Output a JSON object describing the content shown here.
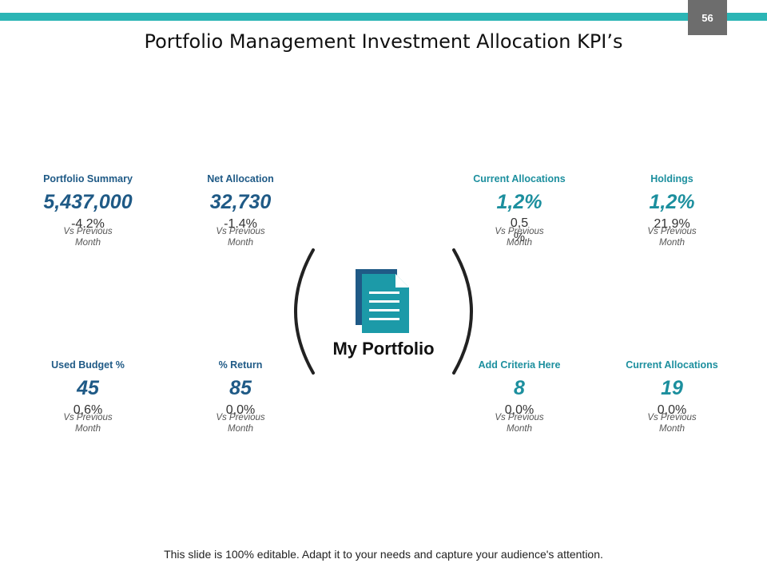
{
  "page_number": "56",
  "title": "Portfolio Management Investment Allocation KPI’s",
  "center_label": "My Portfolio",
  "center_icon": "document-icon",
  "kpis": [
    {
      "label": "Portfolio Summary",
      "value": "5,437,000",
      "change": "-4.2%",
      "note": "Vs Previous Month"
    },
    {
      "label": "Net Allocation",
      "value": "32,730",
      "change": "-1.4%",
      "note": "Vs Previous Month"
    },
    {
      "label": "Current Allocations",
      "value": "1,2%",
      "change": "0,5 %",
      "note": "Vs Previous Month"
    },
    {
      "label": "Holdings",
      "value": "1,2%",
      "change": "21,9%",
      "note": "Vs Previous Month"
    },
    {
      "label": "Used Budget %",
      "value": "45",
      "change": "0,6%",
      "note": "Vs Previous Month"
    },
    {
      "label": "% Return",
      "value": "85",
      "change": "0,0%",
      "note": "Vs Previous Month"
    },
    {
      "label": "Add Criteria Here",
      "value": "8",
      "change": "0,0%",
      "note": "Vs Previous Month"
    },
    {
      "label": "Current Allocations",
      "value": "19",
      "change": "0,0%",
      "note": "Vs Previous Month"
    }
  ],
  "footer": "This slide is 100% editable. Adapt it to your needs and capture your audience's attention.",
  "colors": {
    "accent_bar": "#2bb5b5",
    "blue": "#1f5a86",
    "teal": "#1c8f9e",
    "page_badge": "#6d6d6d"
  }
}
